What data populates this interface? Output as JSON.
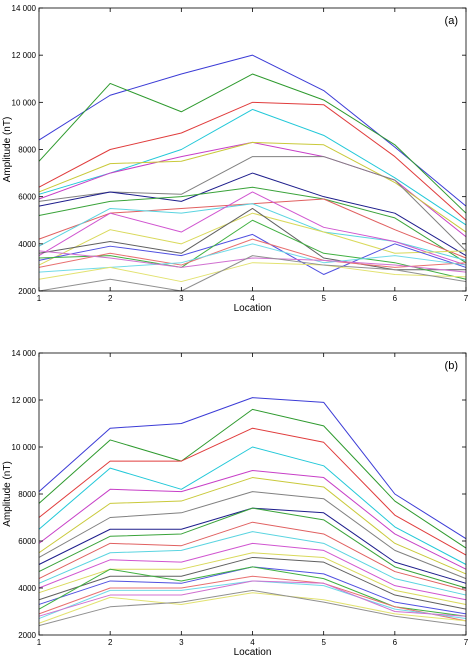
{
  "chart_data": [
    {
      "type": "line",
      "panel_label": "(a)",
      "xlabel": "Location",
      "ylabel": "Amplitude (nT)",
      "x": [
        1,
        2,
        3,
        4,
        5,
        6,
        7
      ],
      "xlim": [
        1,
        7
      ],
      "ylim": [
        2000,
        14000
      ],
      "xticks": [
        "1",
        "2",
        "3",
        "4",
        "5",
        "6",
        "7"
      ],
      "yticks": [
        "2000",
        "4000",
        "6000",
        "8000",
        "10 000",
        "12 000",
        "14 000"
      ],
      "grid": false,
      "series": [
        {
          "color": "#3b3bd6",
          "values": [
            8400,
            10300,
            11200,
            12000,
            10500,
            8100,
            5600
          ]
        },
        {
          "color": "#2e9a2e",
          "values": [
            7500,
            10800,
            9600,
            11200,
            10100,
            8200,
            5300
          ]
        },
        {
          "color": "#e03c3c",
          "values": [
            6400,
            8000,
            8700,
            10000,
            9900,
            7700,
            5000
          ]
        },
        {
          "color": "#22c8d8",
          "values": [
            6100,
            7000,
            8000,
            9700,
            8600,
            6800,
            4800
          ]
        },
        {
          "color": "#c73fc7",
          "values": [
            5900,
            7000,
            7700,
            8300,
            7700,
            6700,
            4300
          ]
        },
        {
          "color": "#c9c93a",
          "values": [
            6200,
            7400,
            7500,
            8300,
            8200,
            6600,
            4500
          ]
        },
        {
          "color": "#808080",
          "values": [
            5800,
            6200,
            6100,
            7700,
            7700,
            6700,
            3700
          ]
        },
        {
          "color": "#1e1e8c",
          "values": [
            5600,
            6200,
            5800,
            7000,
            6000,
            5300,
            3500
          ]
        },
        {
          "color": "#3aa33a",
          "values": [
            5200,
            5800,
            6000,
            6400,
            5900,
            5100,
            3200
          ]
        },
        {
          "color": "#e06060",
          "values": [
            4200,
            5300,
            5500,
            5700,
            5900,
            4600,
            3400
          ]
        },
        {
          "color": "#5ad4e0",
          "values": [
            3900,
            5500,
            5300,
            5700,
            4500,
            4100,
            3300
          ]
        },
        {
          "color": "#d055d0",
          "values": [
            3500,
            5300,
            4500,
            6200,
            4700,
            4100,
            3100
          ]
        },
        {
          "color": "#d9d95a",
          "values": [
            3100,
            4600,
            4000,
            5300,
            4500,
            3600,
            3700
          ]
        },
        {
          "color": "#606060",
          "values": [
            3600,
            4100,
            3600,
            5500,
            3400,
            2900,
            2900
          ]
        },
        {
          "color": "#5050e0",
          "values": [
            3300,
            3900,
            3500,
            4400,
            2700,
            4000,
            3000
          ]
        },
        {
          "color": "#40b040",
          "values": [
            3400,
            3500,
            3000,
            5000,
            3600,
            3200,
            2500
          ]
        },
        {
          "color": "#e87070",
          "values": [
            3000,
            3600,
            3100,
            4200,
            3300,
            3000,
            3200
          ]
        },
        {
          "color": "#70dae8",
          "values": [
            2800,
            3000,
            3200,
            4000,
            3200,
            3500,
            3100
          ]
        },
        {
          "color": "#d070d0",
          "values": [
            3700,
            3400,
            3000,
            3400,
            3300,
            3100,
            2800
          ]
        },
        {
          "color": "#e2e270",
          "values": [
            2500,
            3000,
            2400,
            3200,
            3100,
            2700,
            2600
          ]
        },
        {
          "color": "#909090",
          "values": [
            2000,
            2500,
            2000,
            3500,
            3100,
            2900,
            2400
          ]
        }
      ]
    },
    {
      "type": "line",
      "panel_label": "(b)",
      "xlabel": "Location",
      "ylabel": "Amplitude (nT)",
      "x": [
        1,
        2,
        3,
        4,
        5,
        6,
        7
      ],
      "xlim": [
        1,
        7
      ],
      "ylim": [
        2000,
        14000
      ],
      "xticks": [
        "1",
        "2",
        "3",
        "4",
        "5",
        "6",
        "7"
      ],
      "yticks": [
        "2000",
        "4000",
        "6000",
        "8000",
        "10 000",
        "12 000",
        "14 000"
      ],
      "grid": false,
      "series": [
        {
          "color": "#3b3bd6",
          "values": [
            8100,
            10800,
            11000,
            12100,
            11900,
            8000,
            6100
          ]
        },
        {
          "color": "#2e9a2e",
          "values": [
            7600,
            10300,
            9400,
            11600,
            10900,
            7700,
            5700
          ]
        },
        {
          "color": "#e03c3c",
          "values": [
            7000,
            9400,
            9400,
            10800,
            10200,
            7100,
            5400
          ]
        },
        {
          "color": "#22c8d8",
          "values": [
            6500,
            9100,
            8200,
            10000,
            9200,
            6600,
            5000
          ]
        },
        {
          "color": "#c73fc7",
          "values": [
            5900,
            8200,
            8100,
            9000,
            8700,
            6300,
            4800
          ]
        },
        {
          "color": "#c9c93a",
          "values": [
            5500,
            7600,
            7700,
            8700,
            8300,
            5900,
            4600
          ]
        },
        {
          "color": "#808080",
          "values": [
            5300,
            7000,
            7200,
            8100,
            7800,
            5600,
            4400
          ]
        },
        {
          "color": "#1e1e8c",
          "values": [
            5000,
            6500,
            6500,
            7400,
            7200,
            5100,
            4200
          ]
        },
        {
          "color": "#3aa33a",
          "values": [
            4700,
            6200,
            6300,
            7400,
            6900,
            4900,
            4000
          ]
        },
        {
          "color": "#e06060",
          "values": [
            4400,
            5900,
            5800,
            6800,
            6300,
            4700,
            3900
          ]
        },
        {
          "color": "#5ad4e0",
          "values": [
            4200,
            5500,
            5600,
            6400,
            5900,
            4400,
            3700
          ]
        },
        {
          "color": "#d055d0",
          "values": [
            4000,
            5200,
            5100,
            5900,
            5600,
            4100,
            3500
          ]
        },
        {
          "color": "#d9d95a",
          "values": [
            3800,
            4800,
            4800,
            5500,
            5300,
            3900,
            3300
          ]
        },
        {
          "color": "#606060",
          "values": [
            3500,
            4500,
            4500,
            5300,
            5100,
            3700,
            3100
          ]
        },
        {
          "color": "#5050e0",
          "values": [
            3300,
            4300,
            4200,
            4900,
            4600,
            3400,
            2900
          ]
        },
        {
          "color": "#40b040",
          "values": [
            3100,
            4800,
            4300,
            4900,
            4400,
            3200,
            2800
          ]
        },
        {
          "color": "#e87070",
          "values": [
            2900,
            4000,
            4000,
            4500,
            4200,
            3200,
            2600
          ]
        },
        {
          "color": "#70dae8",
          "values": [
            2700,
            3900,
            3900,
            4300,
            4100,
            3100,
            2700
          ]
        },
        {
          "color": "#d070d0",
          "values": [
            2800,
            3700,
            3700,
            4300,
            4200,
            3000,
            2800
          ]
        },
        {
          "color": "#e2e270",
          "values": [
            2500,
            3600,
            3300,
            3800,
            3500,
            2900,
            2600
          ]
        },
        {
          "color": "#909090",
          "values": [
            2400,
            3200,
            3400,
            3900,
            3400,
            2800,
            2400
          ]
        }
      ]
    }
  ]
}
